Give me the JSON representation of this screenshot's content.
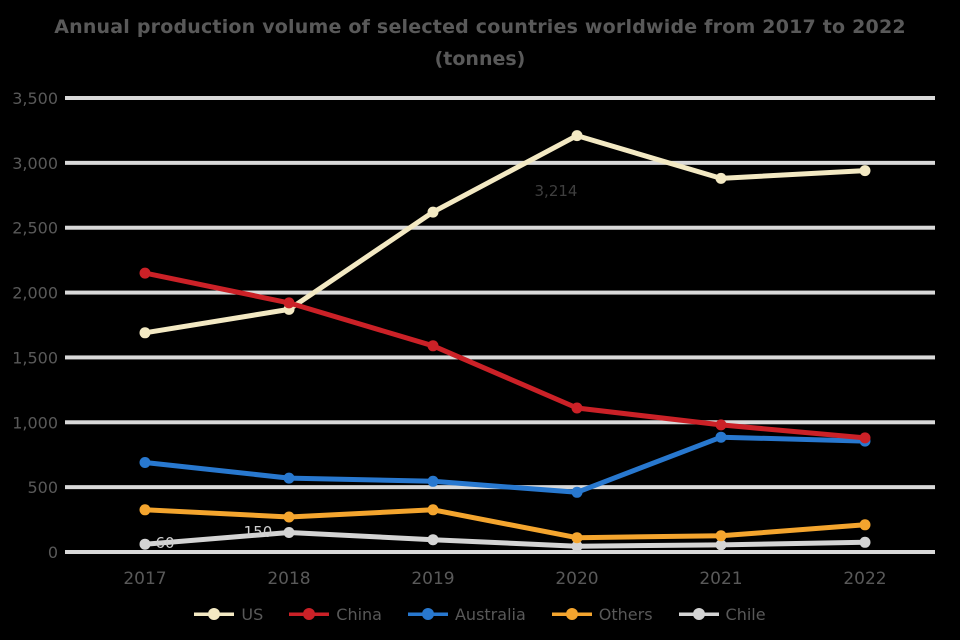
{
  "title": {
    "line1": "Annual production volume of selected countries worldwide from 2017 to 2022",
    "line2": "(tonnes)"
  },
  "colors": {
    "background": "#000000",
    "grid": "#d9d9d9",
    "text": "#595959"
  },
  "chart_data": {
    "type": "line",
    "title": "Annual production volume of selected countries worldwide from 2017 to 2022 (tonnes)",
    "categories": [
      "2017",
      "2018",
      "2019",
      "2020",
      "2021",
      "2022"
    ],
    "series": [
      {
        "name": "US",
        "color": "#f3e9c3",
        "values": [
          1690,
          1870,
          2620,
          3210,
          2880,
          2940
        ]
      },
      {
        "name": "China",
        "color": "#cb2127",
        "values": [
          2150,
          1920,
          1590,
          1110,
          980,
          880
        ]
      },
      {
        "name": "Australia",
        "color": "#2878cf",
        "values": [
          690,
          570,
          545,
          460,
          885,
          855
        ]
      },
      {
        "name": "Others",
        "color": "#f4a52e",
        "values": [
          325,
          270,
          325,
          110,
          125,
          210
        ]
      },
      {
        "name": "Chile",
        "color": "#d4d4d4",
        "values": [
          60,
          150,
          95,
          45,
          55,
          75
        ]
      }
    ],
    "xlabel": "",
    "ylabel": "",
    "ylim": [
      0,
      3500
    ],
    "ytick_labels": [
      "0",
      "500",
      "1,000",
      "1,500",
      "2,000",
      "2,500",
      "3,000",
      "3,500"
    ],
    "grid": true,
    "legend_position": "bottom",
    "annotations": [
      {
        "text": "3,214",
        "x": 556,
        "y": 196,
        "color": "#3f3f3f"
      },
      {
        "text": "60",
        "x": 165,
        "y": 548,
        "color": "#cfcfcf"
      },
      {
        "text": "150",
        "x": 258,
        "y": 537,
        "color": "#cfcfcf"
      }
    ]
  }
}
